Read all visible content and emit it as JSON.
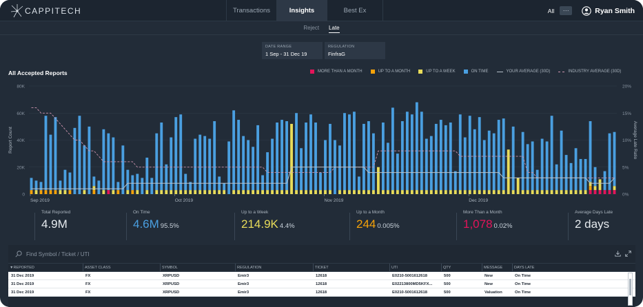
{
  "app": {
    "logo_text": "CAPPITECH",
    "nav_tabs": [
      "Transactions",
      "Insights",
      "Best Ex"
    ],
    "active_tab": "Insights",
    "scope_label": "All",
    "more_label": "···",
    "user_name": "Ryan Smith"
  },
  "sub_tabs": [
    "Reject",
    "Late"
  ],
  "filters": [
    {
      "label": "DATE RANGE",
      "value": "1 Sep - 31 Dec 19"
    },
    {
      "label": "REGULATION",
      "value": "FinfraG"
    }
  ],
  "chart_title": "All Accepted Reports",
  "legend": [
    {
      "label": "MORE THAN A MONTH",
      "color": "#e3145a",
      "kind": "swatch"
    },
    {
      "label": "UP TO A MONTH",
      "color": "#f5a20a",
      "kind": "swatch"
    },
    {
      "label": "UP TO A WEEK",
      "color": "#e8dc5a",
      "kind": "swatch"
    },
    {
      "label": "ON TIME",
      "color": "#4a9fe0",
      "kind": "swatch"
    },
    {
      "label": "YOUR AVERAGE (30D)",
      "color": "#b8c2cc",
      "kind": "line"
    },
    {
      "label": "INDUSTRY AVERAGE (30D)",
      "color": "#d095b0",
      "kind": "dash"
    }
  ],
  "chart_data": {
    "type": "bar",
    "stacked": true,
    "title": "All Accepted Reports",
    "ylabel": "Report Count",
    "y2label": "Average Late Ratio",
    "ylim": [
      0,
      80000
    ],
    "y2lim": [
      0,
      20
    ],
    "y_ticks": [
      "0",
      "20K",
      "40K",
      "60K",
      "80K"
    ],
    "y2_ticks": [
      "0%",
      "5%",
      "10%",
      "15%",
      "20%"
    ],
    "x_labels": [
      {
        "label": "Sep 2019",
        "index": 0
      },
      {
        "label": "Oct 2019",
        "index": 30
      },
      {
        "label": "Nov 2019",
        "index": 61
      },
      {
        "label": "Dec 2019",
        "index": 91
      }
    ],
    "colors": {
      "on_time": "#4a9fe0",
      "week": "#e8dc5a",
      "month": "#f5a20a",
      "more": "#e3145a",
      "your_avg": "#b8c2cc",
      "industry_avg": "#d095b0"
    },
    "on_time": [
      9000,
      7000,
      6000,
      55000,
      41000,
      54000,
      7000,
      15000,
      13000,
      49000,
      58000,
      33000,
      50000,
      7000,
      10000,
      45000,
      42000,
      39000,
      6000,
      36000,
      15000,
      11000,
      12000,
      12000,
      24000,
      12000,
      42000,
      50000,
      19000,
      39000,
      54000,
      56000,
      12000,
      6000,
      38000,
      41000,
      40000,
      38000,
      51000,
      10000,
      5000,
      39000,
      59000,
      52000,
      40000,
      37000,
      32000,
      48000,
      11000,
      28000,
      38000,
      50000,
      52000,
      51000,
      5000,
      57000,
      31000,
      50000,
      56000,
      50000,
      13000,
      37000,
      49000,
      40000,
      33000,
      57000,
      56000,
      58000,
      10000,
      49000,
      51000,
      42000,
      42000,
      50000,
      35000,
      61000,
      27000,
      51000,
      58000,
      56000,
      65000,
      58000,
      38000,
      40000,
      49000,
      52000,
      48000,
      50000,
      14000,
      56000,
      39000,
      55000,
      45000,
      54000,
      37000,
      44000,
      42000,
      52000,
      53000,
      44000,
      47000,
      14000,
      43000,
      34000,
      36000,
      15000,
      38000,
      36000,
      55000,
      19000,
      44000,
      26000,
      20000,
      31000,
      23000,
      23000,
      45000,
      14000,
      22000,
      14000,
      42000,
      40000
    ],
    "up_to_week": [
      0,
      3000,
      0,
      0,
      0,
      0,
      3000,
      3000,
      0,
      0,
      0,
      3000,
      0,
      3000,
      0,
      3000,
      0,
      3000,
      0,
      0,
      3000,
      0,
      3000,
      0,
      3000,
      0,
      3000,
      3000,
      3000,
      3000,
      3000,
      3000,
      3000,
      3000,
      3000,
      3000,
      3000,
      3000,
      3000,
      3000,
      3000,
      0,
      3000,
      3000,
      3000,
      3000,
      3000,
      3000,
      3000,
      3000,
      3000,
      3000,
      3000,
      3000,
      3000,
      3000,
      3000,
      3000,
      3000,
      3000,
      3000,
      3000,
      3000,
      0,
      3000,
      3000,
      3000,
      3000,
      3000,
      3000,
      3000,
      3000,
      3000,
      3000,
      3000,
      3000,
      3000,
      3000,
      3000,
      3000,
      3000,
      3000,
      3000,
      3000,
      3000,
      3000,
      3000,
      3000,
      3000,
      3000,
      3000,
      3000,
      3000,
      3000,
      3000,
      3000,
      3000,
      3000,
      3000,
      3000,
      3000,
      3000,
      3000,
      3000,
      3000,
      3000,
      3000,
      3000,
      3000,
      3000,
      3000,
      3000,
      3000,
      3000,
      3000,
      3000,
      3000,
      3000,
      0,
      0,
      0,
      3000
    ],
    "up_to_month": [
      3000,
      0,
      3000,
      3000,
      3000,
      3000,
      0,
      0,
      3000,
      0,
      0,
      0,
      0,
      3000,
      0,
      0,
      0,
      0,
      3000,
      0,
      0,
      3000,
      0,
      0,
      0,
      0,
      0,
      0,
      0,
      0,
      0,
      0,
      0,
      0,
      0,
      0,
      0,
      0,
      0,
      0,
      0,
      0,
      0,
      0,
      0,
      0,
      0,
      0,
      0,
      0,
      0,
      0,
      0,
      0,
      0,
      0,
      0,
      0,
      0,
      0,
      0,
      0,
      0,
      0,
      0,
      0,
      0,
      0,
      0,
      0,
      0,
      0,
      0,
      0,
      0,
      0,
      0,
      0,
      0,
      0,
      0,
      0,
      0,
      0,
      0,
      0,
      0,
      0,
      0,
      0,
      0,
      0,
      0,
      0,
      0,
      0,
      0,
      0,
      0,
      0,
      0,
      0,
      0,
      0,
      0,
      0,
      0,
      0,
      0,
      0,
      0,
      0,
      0,
      0,
      0,
      0,
      3000,
      0,
      0,
      0
    ],
    "more_than_month": [
      0,
      0,
      0,
      0,
      0,
      0,
      0,
      0,
      0,
      0,
      0,
      0,
      0,
      0,
      0,
      0,
      3000,
      0,
      0,
      0,
      0,
      0,
      0,
      0,
      0,
      0,
      0,
      0,
      0,
      0,
      0,
      0,
      0,
      0,
      0,
      0,
      0,
      0,
      0,
      0,
      0,
      0,
      0,
      0,
      0,
      0,
      0,
      0,
      0,
      0,
      0,
      0,
      0,
      0,
      0,
      0,
      0,
      0,
      0,
      0,
      0,
      0,
      0,
      0,
      0,
      0,
      0,
      0,
      0,
      0,
      0,
      0,
      0,
      0,
      0,
      0,
      0,
      0,
      0,
      0,
      0,
      0,
      0,
      0,
      0,
      0,
      0,
      0,
      0,
      0,
      0,
      0,
      0,
      0,
      0,
      0,
      0,
      0,
      0,
      0,
      0,
      0,
      0,
      0,
      0,
      0,
      0,
      0,
      0,
      0,
      0,
      0,
      0,
      0,
      0,
      0,
      3000,
      3000,
      3000,
      3000,
      3000,
      3000
    ],
    "big_week_bars": [
      {
        "index": 54,
        "value": 52000
      },
      {
        "index": 72,
        "value": 20000
      },
      {
        "index": 99,
        "value": 33000
      },
      {
        "index": 101,
        "value": 12000
      },
      {
        "index": 118,
        "value": 8000
      }
    ],
    "your_average_pct": [
      1,
      1,
      1,
      1,
      1,
      1,
      1,
      1,
      1,
      1,
      1,
      1,
      1,
      1,
      1,
      1,
      1,
      1,
      1,
      1,
      2,
      2,
      2,
      2,
      2,
      2,
      2,
      2,
      2,
      2,
      2,
      2,
      2,
      2,
      2,
      2,
      2,
      2,
      2,
      2,
      2,
      2,
      2,
      2,
      2,
      2,
      2,
      2,
      2,
      2,
      2,
      2,
      2,
      2,
      5,
      5,
      5,
      5,
      5,
      5,
      5,
      5,
      5,
      5,
      5,
      5,
      5,
      5,
      5,
      5,
      4,
      4,
      4,
      4,
      4,
      4,
      4,
      4,
      4,
      4,
      4,
      4,
      4,
      4,
      4,
      4,
      4,
      4,
      4,
      4,
      4,
      4,
      4,
      4,
      4,
      4,
      4,
      4,
      3,
      3,
      3,
      3,
      3,
      3,
      3,
      3,
      3,
      3,
      3,
      3,
      3,
      3,
      3,
      3,
      3,
      3,
      2,
      2,
      2,
      2,
      2,
      3
    ],
    "industry_average_pct": [
      16,
      16,
      15,
      15,
      15,
      14,
      13,
      12,
      11,
      10,
      10,
      9,
      8,
      8,
      7,
      6,
      6,
      6,
      6,
      6,
      6,
      6,
      5,
      5,
      5,
      5,
      5,
      5,
      5,
      5,
      5,
      5,
      5,
      5,
      5,
      5,
      5,
      5,
      5,
      5,
      5,
      5,
      5,
      5,
      5,
      5,
      5,
      5,
      5,
      4,
      4,
      4,
      4,
      4,
      4,
      4,
      4,
      4,
      4,
      4,
      4,
      4,
      4,
      5,
      5,
      5,
      5,
      5,
      5,
      5,
      5,
      5,
      8,
      8,
      8,
      8,
      8,
      8,
      8,
      8,
      8,
      8,
      8,
      8,
      8,
      8,
      8,
      8,
      8,
      7,
      7,
      7,
      7,
      7,
      7,
      7,
      7,
      7,
      7,
      7,
      7,
      7,
      7,
      4,
      4,
      3,
      3,
      3,
      3,
      3,
      3,
      3,
      3,
      3,
      3,
      3,
      3,
      3,
      3,
      3,
      3,
      3
    ]
  },
  "stats": [
    {
      "label": "Total Reported",
      "value": "4.9M",
      "sub": "",
      "color": "#e6ebef"
    },
    {
      "label": "On Time",
      "value": "4.6M",
      "sub": "95.5%",
      "color": "#4a9fe0"
    },
    {
      "label": "Up to a Week",
      "value": "214.9K",
      "sub": "4.4%",
      "color": "#e8dc5a"
    },
    {
      "label": "Up to a Month",
      "value": "244",
      "sub": "0.005%",
      "color": "#f5a20a"
    },
    {
      "label": "More Than a Month",
      "value": "1,078",
      "sub": "0.02%",
      "color": "#e3145a"
    },
    {
      "label": "Average Days Late",
      "value": "2 days",
      "sub": "",
      "color": "#e6ebef"
    }
  ],
  "search": {
    "placeholder": "Find Symbol / Ticket / UTI"
  },
  "table": {
    "columns": [
      "▼REPORTED",
      "ASSET CLASS",
      "SYMBOL",
      "REGULATION",
      "TICKET",
      "UTI",
      "QTY",
      "MESSAGE",
      "DAYS LATE"
    ],
    "rows": [
      [
        "31 Dec 2019",
        "FX",
        "XRPUSD",
        "Emir3",
        "12618",
        "E0210-5001612618",
        "500",
        "New",
        "On Time"
      ],
      [
        "31 Dec 2019",
        "FX",
        "XRPUSD",
        "Emir3",
        "12618",
        "E02213800MD5KFX...",
        "500",
        "New",
        "On Time"
      ],
      [
        "31 Dec 2019",
        "FX",
        "XRPUSD",
        "Emir3",
        "12618",
        "E0210-5001612618",
        "500",
        "Valuation",
        "On Time"
      ]
    ]
  }
}
